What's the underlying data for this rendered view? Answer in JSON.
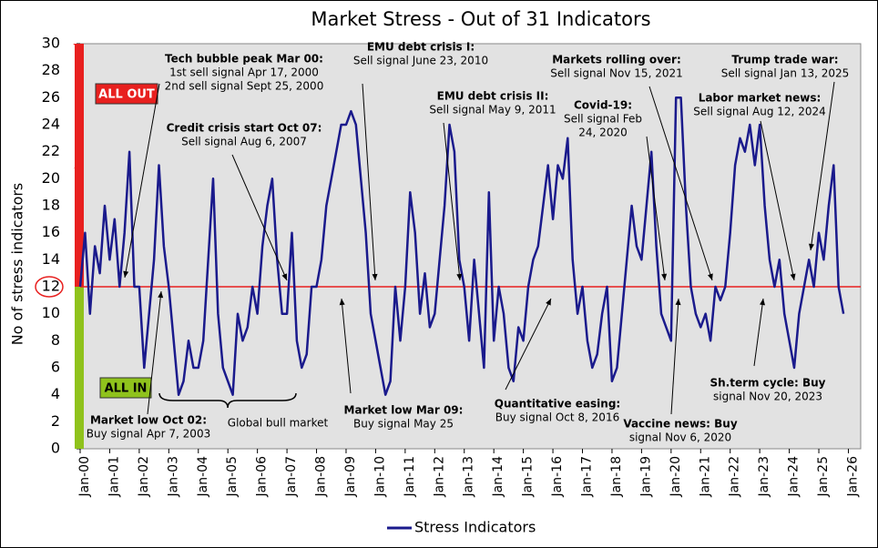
{
  "chart_data": {
    "type": "line",
    "title": "Market Stress - Out of 31 Indicators",
    "y_label": "No of stress indicators",
    "xlim": [
      "2000-01",
      "2026-06"
    ],
    "xticks": [
      {
        "value": "2000-01",
        "label": "Jan-00"
      },
      {
        "value": "2001-01",
        "label": "Jan-01"
      },
      {
        "value": "2002-01",
        "label": "Jan-02"
      },
      {
        "value": "2003-01",
        "label": "Jan-03"
      },
      {
        "value": "2004-01",
        "label": "Jan-04"
      },
      {
        "value": "2005-01",
        "label": "Jan-05"
      },
      {
        "value": "2006-01",
        "label": "Jan-06"
      },
      {
        "value": "2007-01",
        "label": "Jan-07"
      },
      {
        "value": "2008-01",
        "label": "Jan-08"
      },
      {
        "value": "2009-01",
        "label": "Jan-09"
      },
      {
        "value": "2010-01",
        "label": "Jan-10"
      },
      {
        "value": "2011-01",
        "label": "Jan-11"
      },
      {
        "value": "2012-01",
        "label": "Jan-12"
      },
      {
        "value": "2013-01",
        "label": "Jan-13"
      },
      {
        "value": "2014-01",
        "label": "Jan-14"
      },
      {
        "value": "2015-01",
        "label": "Jan-15"
      },
      {
        "value": "2016-01",
        "label": "Jan-16"
      },
      {
        "value": "2017-01",
        "label": "Jan-17"
      },
      {
        "value": "2018-01",
        "label": "Jan-18"
      },
      {
        "value": "2019-01",
        "label": "Jan-19"
      },
      {
        "value": "2020-01",
        "label": "Jan-20"
      },
      {
        "value": "2021-01",
        "label": "Jan-21"
      },
      {
        "value": "2022-01",
        "label": "Jan-22"
      },
      {
        "value": "2023-01",
        "label": "Jan-23"
      },
      {
        "value": "2024-01",
        "label": "Jan-24"
      },
      {
        "value": "2025-01",
        "label": "Jan-25"
      },
      {
        "value": "2026-01",
        "label": "Jan-26"
      }
    ],
    "ylim": [
      0,
      30
    ],
    "yticks": [
      0,
      2,
      4,
      6,
      8,
      10,
      12,
      14,
      16,
      18,
      20,
      22,
      24,
      26,
      28,
      30
    ],
    "threshold": 12,
    "threshold_color": "#e8201f",
    "zones": [
      {
        "label": "ALL OUT",
        "color": "#e8201f"
      },
      {
        "label": "ALL IN",
        "color": "#8fc21c"
      }
    ],
    "x": [
      "2000-01",
      "2000-03",
      "2000-05",
      "2000-07",
      "2000-09",
      "2000-11",
      "2001-01",
      "2001-03",
      "2001-05",
      "2001-07",
      "2001-09",
      "2001-11",
      "2002-01",
      "2002-03",
      "2002-05",
      "2002-07",
      "2002-09",
      "2002-11",
      "2003-01",
      "2003-03",
      "2003-05",
      "2003-07",
      "2003-09",
      "2003-11",
      "2004-01",
      "2004-03",
      "2004-05",
      "2004-07",
      "2004-09",
      "2004-11",
      "2005-01",
      "2005-03",
      "2005-05",
      "2005-07",
      "2005-09",
      "2005-11",
      "2006-01",
      "2006-03",
      "2006-05",
      "2006-07",
      "2006-09",
      "2006-11",
      "2007-01",
      "2007-03",
      "2007-05",
      "2007-07",
      "2007-09",
      "2007-11",
      "2008-01",
      "2008-03",
      "2008-05",
      "2008-07",
      "2008-09",
      "2008-11",
      "2009-01",
      "2009-03",
      "2009-05",
      "2009-07",
      "2009-09",
      "2009-11",
      "2010-01",
      "2010-03",
      "2010-05",
      "2010-07",
      "2010-09",
      "2010-11",
      "2011-01",
      "2011-03",
      "2011-05",
      "2011-07",
      "2011-09",
      "2011-11",
      "2012-01",
      "2012-03",
      "2012-05",
      "2012-07",
      "2012-09",
      "2012-11",
      "2013-01",
      "2013-03",
      "2013-05",
      "2013-07",
      "2013-09",
      "2013-11",
      "2014-01",
      "2014-03",
      "2014-05",
      "2014-07",
      "2014-09",
      "2014-11",
      "2015-01",
      "2015-03",
      "2015-05",
      "2015-07",
      "2015-09",
      "2015-11",
      "2016-01",
      "2016-03",
      "2016-05",
      "2016-07",
      "2016-09",
      "2016-11",
      "2017-01",
      "2017-03",
      "2017-05",
      "2017-07",
      "2017-09",
      "2017-11",
      "2018-01",
      "2018-03",
      "2018-05",
      "2018-07",
      "2018-09",
      "2018-11",
      "2019-01",
      "2019-03",
      "2019-05",
      "2019-07",
      "2019-09",
      "2019-11",
      "2020-01",
      "2020-03",
      "2020-05",
      "2020-07",
      "2020-09",
      "2020-11",
      "2021-01",
      "2021-03",
      "2021-05",
      "2021-07",
      "2021-09",
      "2021-11",
      "2022-01",
      "2022-03",
      "2022-05",
      "2022-07",
      "2022-09",
      "2022-11",
      "2023-01",
      "2023-03",
      "2023-05",
      "2023-07",
      "2023-09",
      "2023-11",
      "2024-01",
      "2024-03",
      "2024-05",
      "2024-07",
      "2024-09",
      "2024-11",
      "2025-01",
      "2025-03",
      "2025-05",
      "2025-07",
      "2025-09",
      "2025-11"
    ],
    "series": [
      {
        "name": "Stress Indicators",
        "color": "#1a1a8c",
        "values": [
          12,
          16,
          10,
          15,
          13,
          18,
          14,
          17,
          12,
          16,
          22,
          12,
          12,
          6,
          10,
          14,
          21,
          15,
          12,
          8,
          4,
          5,
          8,
          6,
          6,
          8,
          14,
          20,
          10,
          6,
          5,
          4,
          10,
          8,
          9,
          12,
          10,
          15,
          18,
          20,
          14,
          10,
          10,
          16,
          8,
          6,
          7,
          12,
          12,
          14,
          18,
          20,
          22,
          24,
          24,
          25,
          24,
          20,
          16,
          10,
          8,
          6,
          4,
          5,
          12,
          8,
          12,
          19,
          16,
          10,
          13,
          9,
          10,
          14,
          18,
          24,
          22,
          14,
          12,
          8,
          14,
          10,
          6,
          19,
          8,
          12,
          10,
          6,
          5,
          9,
          8,
          12,
          14,
          15,
          18,
          21,
          17,
          21,
          20,
          23,
          14,
          10,
          12,
          8,
          6,
          7,
          10,
          12,
          5,
          6,
          10,
          14,
          18,
          15,
          14,
          18,
          22,
          15,
          10,
          9,
          8,
          26,
          26,
          18,
          12,
          10,
          9,
          10,
          8,
          12,
          11,
          12,
          16,
          21,
          23,
          22,
          24,
          21,
          24,
          18,
          14,
          12,
          14,
          10,
          8,
          6,
          10,
          12,
          14,
          12,
          16,
          14,
          18,
          21,
          12,
          10
        ]
      }
    ],
    "annotations": [
      {
        "lines": [
          "Tech bubble peak Mar 00:",
          "1st sell signal Apr 17, 2000",
          "2nd sell signal Sept 25, 2000"
        ]
      },
      {
        "lines": [
          "Credit crisis start Oct 07:",
          "Sell signal Aug 6, 2007"
        ]
      },
      {
        "lines": [
          "EMU debt crisis I:",
          "Sell signal June 23, 2010"
        ]
      },
      {
        "lines": [
          "EMU debt crisis II:",
          "Sell signal May 9, 2011"
        ]
      },
      {
        "lines": [
          "Markets rolling over:",
          "Sell signal Nov 15, 2021"
        ]
      },
      {
        "lines": [
          "Covid-19:",
          "Sell signal Feb",
          "24, 2020"
        ]
      },
      {
        "lines": [
          "Trump trade war:",
          "Sell signal Jan 13, 2025"
        ]
      },
      {
        "lines": [
          "Labor market news:",
          "Sell signal Aug 12, 2024"
        ]
      },
      {
        "lines": [
          "Market low Oct 02:",
          "Buy signal Apr 7, 2003"
        ]
      },
      {
        "lines": [
          "Market low Mar 09:",
          "Buy signal May 25"
        ]
      },
      {
        "lines": [
          "Quantitative easing:",
          "Buy signal Oct 8, 2016"
        ]
      },
      {
        "lines": [
          "Vaccine news: Buy",
          "signal Nov 6, 2020"
        ]
      },
      {
        "lines": [
          "Sh.term cycle: Buy",
          "signal Nov 20, 2023"
        ]
      }
    ],
    "bracket_label": "Global bull market"
  }
}
